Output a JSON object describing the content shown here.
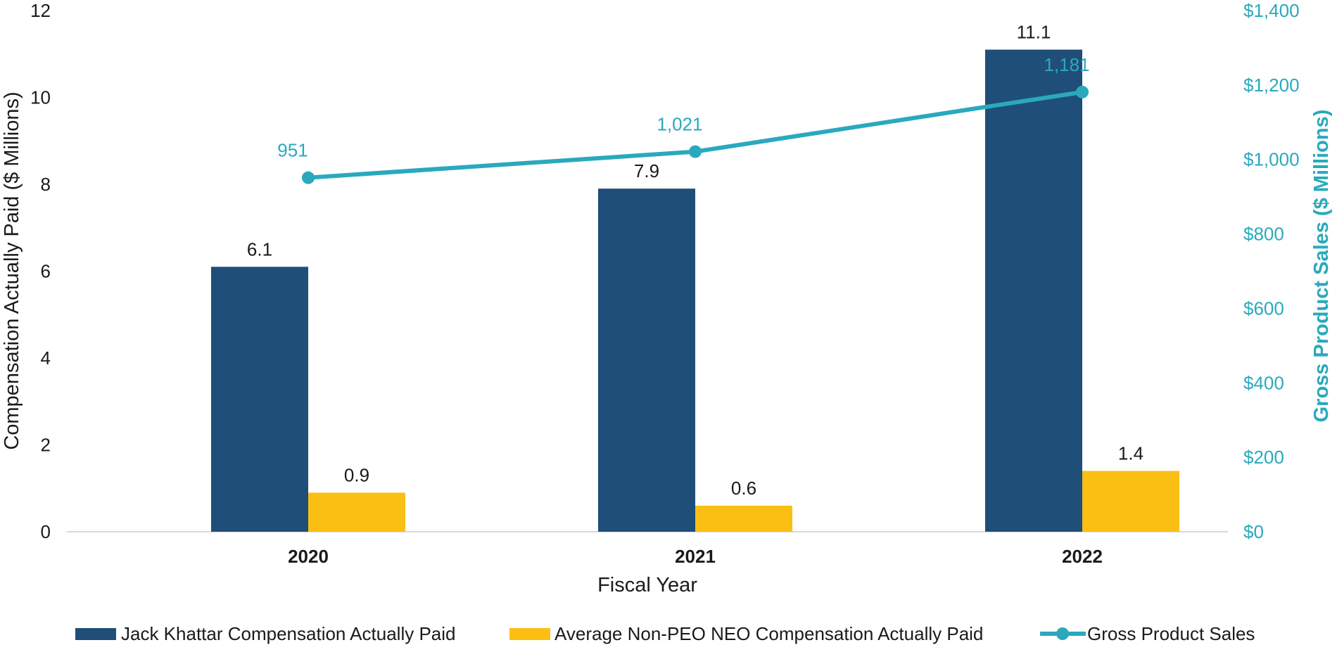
{
  "chart_data": {
    "type": "bar",
    "title": "",
    "categories": [
      "2020",
      "2021",
      "2022"
    ],
    "xlabel": "Fiscal Year",
    "ylabel": "Compensation Actually Paid ($ Millions)",
    "y2label": "Gross Product Sales ($ Millions)",
    "ylim": [
      0,
      12
    ],
    "y2lim": [
      0,
      1400
    ],
    "yticks": [
      "0",
      "2",
      "4",
      "6",
      "8",
      "10",
      "12"
    ],
    "y2ticks": [
      "$0",
      "$200",
      "$400",
      "$600",
      "$800",
      "$1,000",
      "$1,200",
      "$1,400"
    ],
    "grid": false,
    "legend_position": "bottom",
    "series": [
      {
        "name": "Jack Khattar Compensation Actually Paid",
        "type": "bar",
        "axis": "left",
        "color": "#1f4e79",
        "values": [
          6.1,
          7.9,
          11.1
        ],
        "labels": [
          "6.1",
          "7.9",
          "11.1"
        ]
      },
      {
        "name": "Average Non-PEO NEO Compensation Actually Paid",
        "type": "bar",
        "axis": "left",
        "color": "#fbbf14",
        "values": [
          0.9,
          0.6,
          1.4
        ],
        "labels": [
          "0.9",
          "0.6",
          "1.4"
        ]
      },
      {
        "name": "Gross Product Sales",
        "type": "line",
        "axis": "right",
        "color": "#2aa9bd",
        "values": [
          951,
          1021,
          1181
        ],
        "labels": [
          "951",
          "1,021",
          "1,181"
        ]
      }
    ]
  }
}
